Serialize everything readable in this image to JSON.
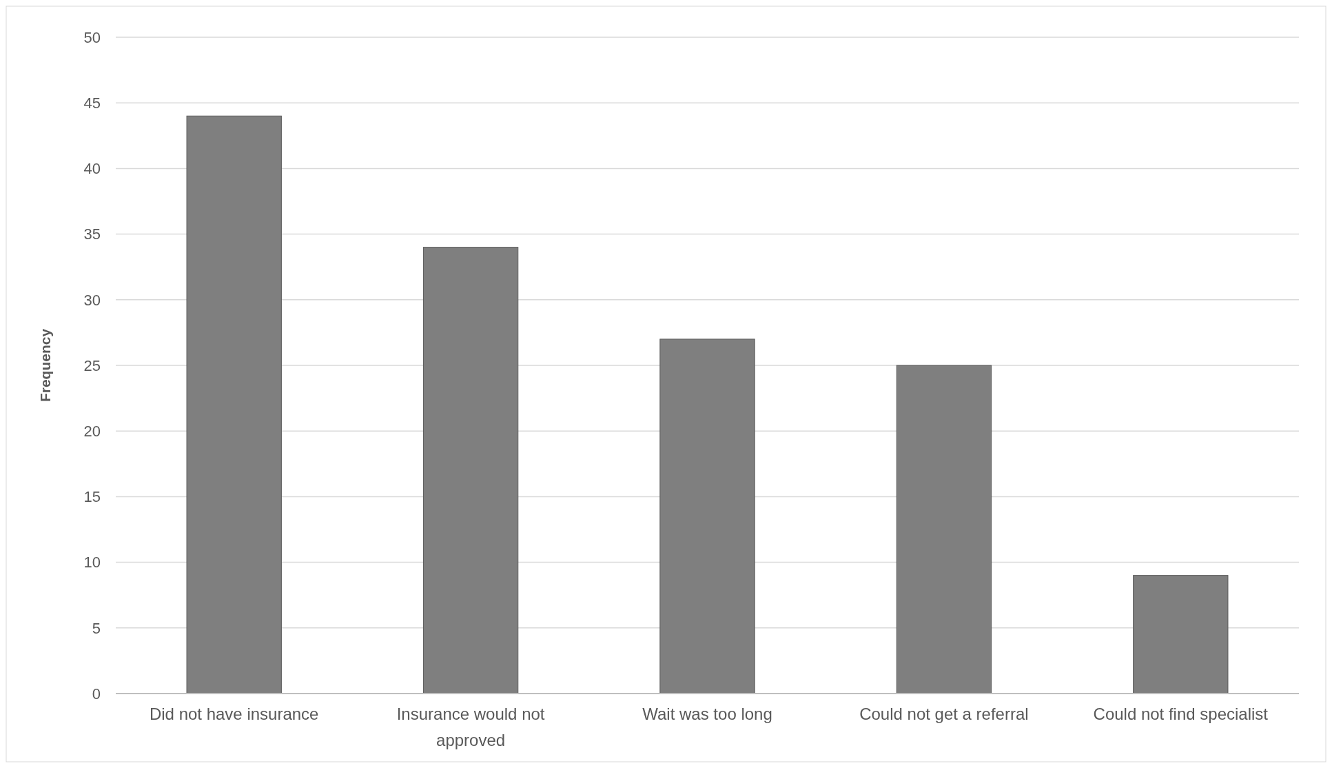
{
  "chart_data": {
    "type": "bar",
    "ylabel": "Frequency",
    "categories": [
      "Did not have insurance",
      "Insurance would not approved",
      "Wait was too long",
      "Could not get a referral",
      "Could not find specialist"
    ],
    "values": [
      44,
      34,
      27,
      25,
      9
    ],
    "color": "#7f7f7f",
    "ylim": [
      0,
      50
    ],
    "yticks": [
      0,
      5,
      10,
      15,
      20,
      25,
      30,
      35,
      40,
      45,
      50
    ],
    "grid": "y"
  }
}
